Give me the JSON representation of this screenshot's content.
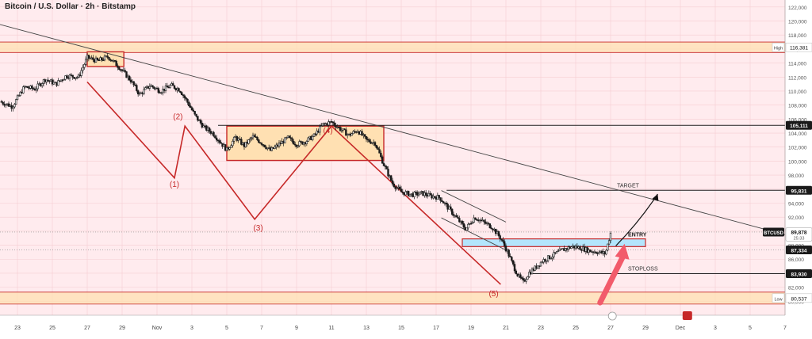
{
  "header": {
    "title": "Bitcoin / U.S. Dollar · 2h · Bitstamp"
  },
  "colors": {
    "background": "#ffebee",
    "candle": "#1a1a1a",
    "zone_fill": "#ffe0b2",
    "zone_border": "#c62828",
    "entry_fill": "#b3e5fc",
    "wave": "#c62828",
    "arrow": "#f25b6b",
    "line": "#222222"
  },
  "chart_data": {
    "type": "candlestick",
    "title": "Bitcoin / U.S. Dollar · 2h · Bitstamp",
    "x_domain": [
      22,
      67
    ],
    "ylim": [
      78000,
      123000
    ],
    "y_ticks": [
      80000,
      82000,
      84000,
      86000,
      88000,
      90000,
      92000,
      94000,
      96000,
      98000,
      100000,
      102000,
      104000,
      106000,
      108000,
      110000,
      112000,
      114000,
      116000,
      118000,
      120000,
      122000
    ],
    "y_tick_labels": [
      "80,000",
      "82,000",
      "84,000",
      "86,000",
      "88,000",
      "90,000",
      "92,000",
      "94,000",
      "96,000",
      "98,000",
      "100,000",
      "102,000",
      "104,000",
      "106,000",
      "108,000",
      "110,000",
      "112,000",
      "114,000",
      "116,000",
      "118,000",
      "120,000",
      "122,000"
    ],
    "x_ticks": [
      {
        "t": 23,
        "label": "23"
      },
      {
        "t": 25,
        "label": "25"
      },
      {
        "t": 27,
        "label": "27"
      },
      {
        "t": 29,
        "label": "29"
      },
      {
        "t": 31,
        "label": "Nov"
      },
      {
        "t": 33,
        "label": "3"
      },
      {
        "t": 35,
        "label": "5"
      },
      {
        "t": 37,
        "label": "7"
      },
      {
        "t": 39,
        "label": "9"
      },
      {
        "t": 41,
        "label": "11"
      },
      {
        "t": 43,
        "label": "13"
      },
      {
        "t": 45,
        "label": "15"
      },
      {
        "t": 47,
        "label": "17"
      },
      {
        "t": 49,
        "label": "19"
      },
      {
        "t": 51,
        "label": "21"
      },
      {
        "t": 53,
        "label": "23"
      },
      {
        "t": 55,
        "label": "25"
      },
      {
        "t": 57,
        "label": "27"
      },
      {
        "t": 59,
        "label": "29"
      },
      {
        "t": 61,
        "label": "Dec"
      },
      {
        "t": 63,
        "label": "3"
      },
      {
        "t": 65,
        "label": "5"
      },
      {
        "t": 67,
        "label": "7"
      }
    ],
    "price_path": [
      [
        22.0,
        108500
      ],
      [
        22.7,
        107800
      ],
      [
        23.4,
        110600
      ],
      [
        24.0,
        110300
      ],
      [
        24.6,
        111700
      ],
      [
        25.2,
        111000
      ],
      [
        25.8,
        112200
      ],
      [
        26.5,
        112000
      ],
      [
        27.0,
        114800
      ],
      [
        27.6,
        114300
      ],
      [
        28.2,
        114900
      ],
      [
        28.8,
        113500
      ],
      [
        29.5,
        111500
      ],
      [
        30.0,
        109500
      ],
      [
        30.6,
        110800
      ],
      [
        31.2,
        110000
      ],
      [
        31.8,
        110800
      ],
      [
        32.3,
        110200
      ],
      [
        32.8,
        108200
      ],
      [
        33.2,
        106400
      ],
      [
        33.7,
        104800
      ],
      [
        34.2,
        104000
      ],
      [
        34.6,
        102800
      ],
      [
        35.0,
        101600
      ],
      [
        35.5,
        103400
      ],
      [
        36.0,
        102200
      ],
      [
        36.5,
        103500
      ],
      [
        37.0,
        102600
      ],
      [
        37.5,
        101500
      ],
      [
        38.0,
        102400
      ],
      [
        38.5,
        103300
      ],
      [
        39.0,
        102400
      ],
      [
        39.5,
        102800
      ],
      [
        40.0,
        103600
      ],
      [
        40.5,
        105200
      ],
      [
        41.0,
        105600
      ],
      [
        41.5,
        104600
      ],
      [
        42.0,
        103700
      ],
      [
        42.5,
        104400
      ],
      [
        43.0,
        103000
      ],
      [
        43.5,
        102600
      ],
      [
        44.0,
        99500
      ],
      [
        44.5,
        96800
      ],
      [
        45.0,
        95600
      ],
      [
        45.6,
        95200
      ],
      [
        46.2,
        95400
      ],
      [
        46.7,
        95000
      ],
      [
        47.2,
        94800
      ],
      [
        47.7,
        93300
      ],
      [
        48.2,
        91800
      ],
      [
        48.7,
        90300
      ],
      [
        49.2,
        92000
      ],
      [
        49.7,
        91300
      ],
      [
        50.2,
        90600
      ],
      [
        50.7,
        89000
      ],
      [
        51.1,
        87000
      ],
      [
        51.4,
        85200
      ],
      [
        51.7,
        83600
      ],
      [
        52.0,
        82700
      ],
      [
        52.3,
        84000
      ],
      [
        52.7,
        84800
      ],
      [
        53.1,
        85800
      ],
      [
        53.6,
        86400
      ],
      [
        54.2,
        87300
      ],
      [
        54.8,
        87800
      ],
      [
        55.3,
        87600
      ],
      [
        55.8,
        87200
      ],
      [
        56.3,
        87000
      ],
      [
        56.7,
        86800
      ],
      [
        57.0,
        89700
      ]
    ],
    "annotations": {
      "resistance_top": {
        "label": "High",
        "value_label": "116,381",
        "y_low": 115500,
        "y_high": 117000
      },
      "support_bottom": {
        "label": "Low",
        "value_label": "80,537",
        "y_low": 79600,
        "y_high": 81300
      },
      "top_box": {
        "t0": 27.0,
        "t1": 29.1,
        "y_low": 113500,
        "y_high": 115600
      },
      "mid_box": {
        "t0": 35.0,
        "t1": 44.0,
        "y_low": 100100,
        "y_high": 105000
      },
      "entry_box": {
        "t0": 48.5,
        "t1": 59.0,
        "y_low": 87800,
        "y_high": 88900,
        "label": "ENTRY"
      },
      "level_105111": {
        "t0": 34.5,
        "value": 105111,
        "value_label": "105,111"
      },
      "level_95831": {
        "t0": 47.6,
        "value": 95831,
        "value_label": "95,831",
        "label": "TARGET"
      },
      "level_83930": {
        "t0": 52.3,
        "value": 83930,
        "value_label": "83,930",
        "label": "STOPLOSS"
      },
      "current_price": {
        "value": 89878,
        "symbol": "BTCUSD",
        "value_label": "89,878",
        "countdown": "25:33"
      },
      "level_87334": {
        "value": 87334,
        "value_label": "87,334"
      },
      "trendline": {
        "points": [
          [
            22.0,
            119500
          ],
          [
            67.0,
            89500
          ]
        ]
      },
      "channel_upper": {
        "points": [
          [
            47.3,
            95800
          ],
          [
            51.0,
            91300
          ]
        ]
      },
      "channel_lower": {
        "points": [
          [
            47.3,
            91900
          ],
          [
            51.0,
            87300
          ]
        ]
      },
      "wave_path": [
        [
          27.0,
          111300
        ],
        [
          32.0,
          97600
        ],
        [
          32.6,
          105000
        ],
        [
          36.6,
          91700
        ],
        [
          41.0,
          105000
        ],
        [
          50.7,
          82400
        ]
      ],
      "wave_labels": [
        {
          "label": "(1)",
          "t": 32.0,
          "y": 96300
        },
        {
          "label": "(2)",
          "t": 32.2,
          "y": 106000
        },
        {
          "label": "(3)",
          "t": 36.8,
          "y": 90100
        },
        {
          "label": "(4)",
          "t": 40.8,
          "y": 104000
        },
        {
          "label": "(5)",
          "t": 50.3,
          "y": 80700
        }
      ],
      "projection_arrow": {
        "points": [
          [
            57.3,
            87900
          ],
          [
            58.7,
            91500
          ],
          [
            59.7,
            95300
          ]
        ]
      },
      "pink_arrow": {
        "from": [
          56.4,
          79800
        ],
        "to": [
          57.8,
          88200
        ]
      }
    }
  }
}
